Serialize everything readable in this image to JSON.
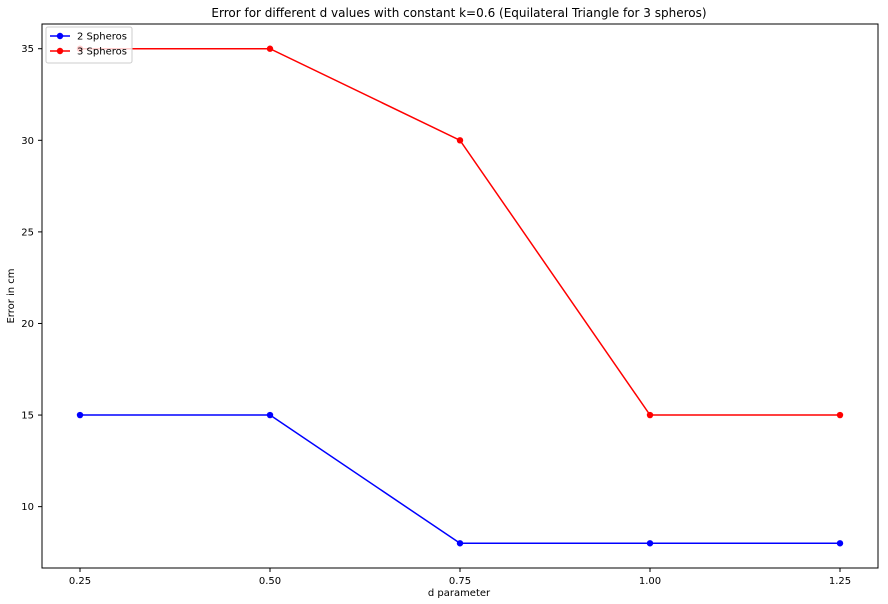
{
  "chart_data": {
    "type": "line",
    "title": "Error for different d values with constant k=0.6 (Equilateral Triangle for 3 spheros)",
    "xlabel": "d parameter",
    "ylabel": "Error in cm",
    "x": [
      0.25,
      0.5,
      0.75,
      1.0,
      1.25
    ],
    "xtick_labels": [
      "0.25",
      "0.50",
      "0.75",
      "1.00",
      "1.25"
    ],
    "yticks": [
      10,
      15,
      20,
      25,
      30,
      35
    ],
    "xlim": [
      0.2,
      1.3
    ],
    "ylim": [
      6.65,
      36.35
    ],
    "grid": false,
    "legend_position": "top-left",
    "series": [
      {
        "name": "2 Spheros",
        "color": "#0000ff",
        "marker": "circle",
        "values": [
          15,
          15,
          8,
          8,
          8
        ]
      },
      {
        "name": "3 Spheros",
        "color": "#ff0000",
        "marker": "circle",
        "values": [
          35,
          35,
          30,
          15,
          15
        ]
      }
    ]
  }
}
